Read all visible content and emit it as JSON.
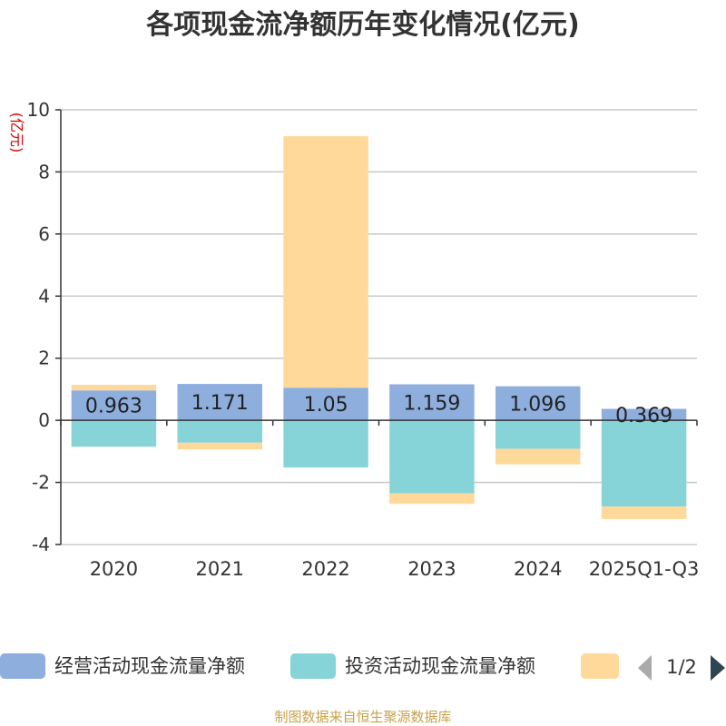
{
  "chart_data": {
    "type": "bar",
    "stacked": true,
    "title": "各项现金流净额历年变化情况(亿元)",
    "ylabel": "(亿元)",
    "categories": [
      "2020",
      "2021",
      "2022",
      "2023",
      "2024",
      "2025Q1-Q3"
    ],
    "ylim": [
      -4,
      10
    ],
    "yticks": [
      -4,
      -2,
      0,
      2,
      4,
      6,
      8,
      10
    ],
    "grid": true,
    "series": [
      {
        "name": "经营活动现金流量净额",
        "color": "#8eaede",
        "values": [
          0.963,
          1.171,
          1.05,
          1.159,
          1.096,
          0.369
        ]
      },
      {
        "name": "投资活动现金流量净额",
        "color": "#86d4d8",
        "values": [
          -0.85,
          -0.72,
          -1.52,
          -2.35,
          -0.92,
          -2.78
        ]
      },
      {
        "name": "",
        "color": "#ffd99a",
        "values": [
          0.18,
          -0.22,
          8.1,
          -0.34,
          -0.5,
          -0.4
        ]
      }
    ],
    "data_labels": [
      "0.963",
      "1.171",
      "1.05",
      "1.159",
      "1.096",
      "0.369"
    ],
    "legend_position": "bottom",
    "pager": "1/2",
    "source": "制图数据来自恒生聚源数据库"
  }
}
